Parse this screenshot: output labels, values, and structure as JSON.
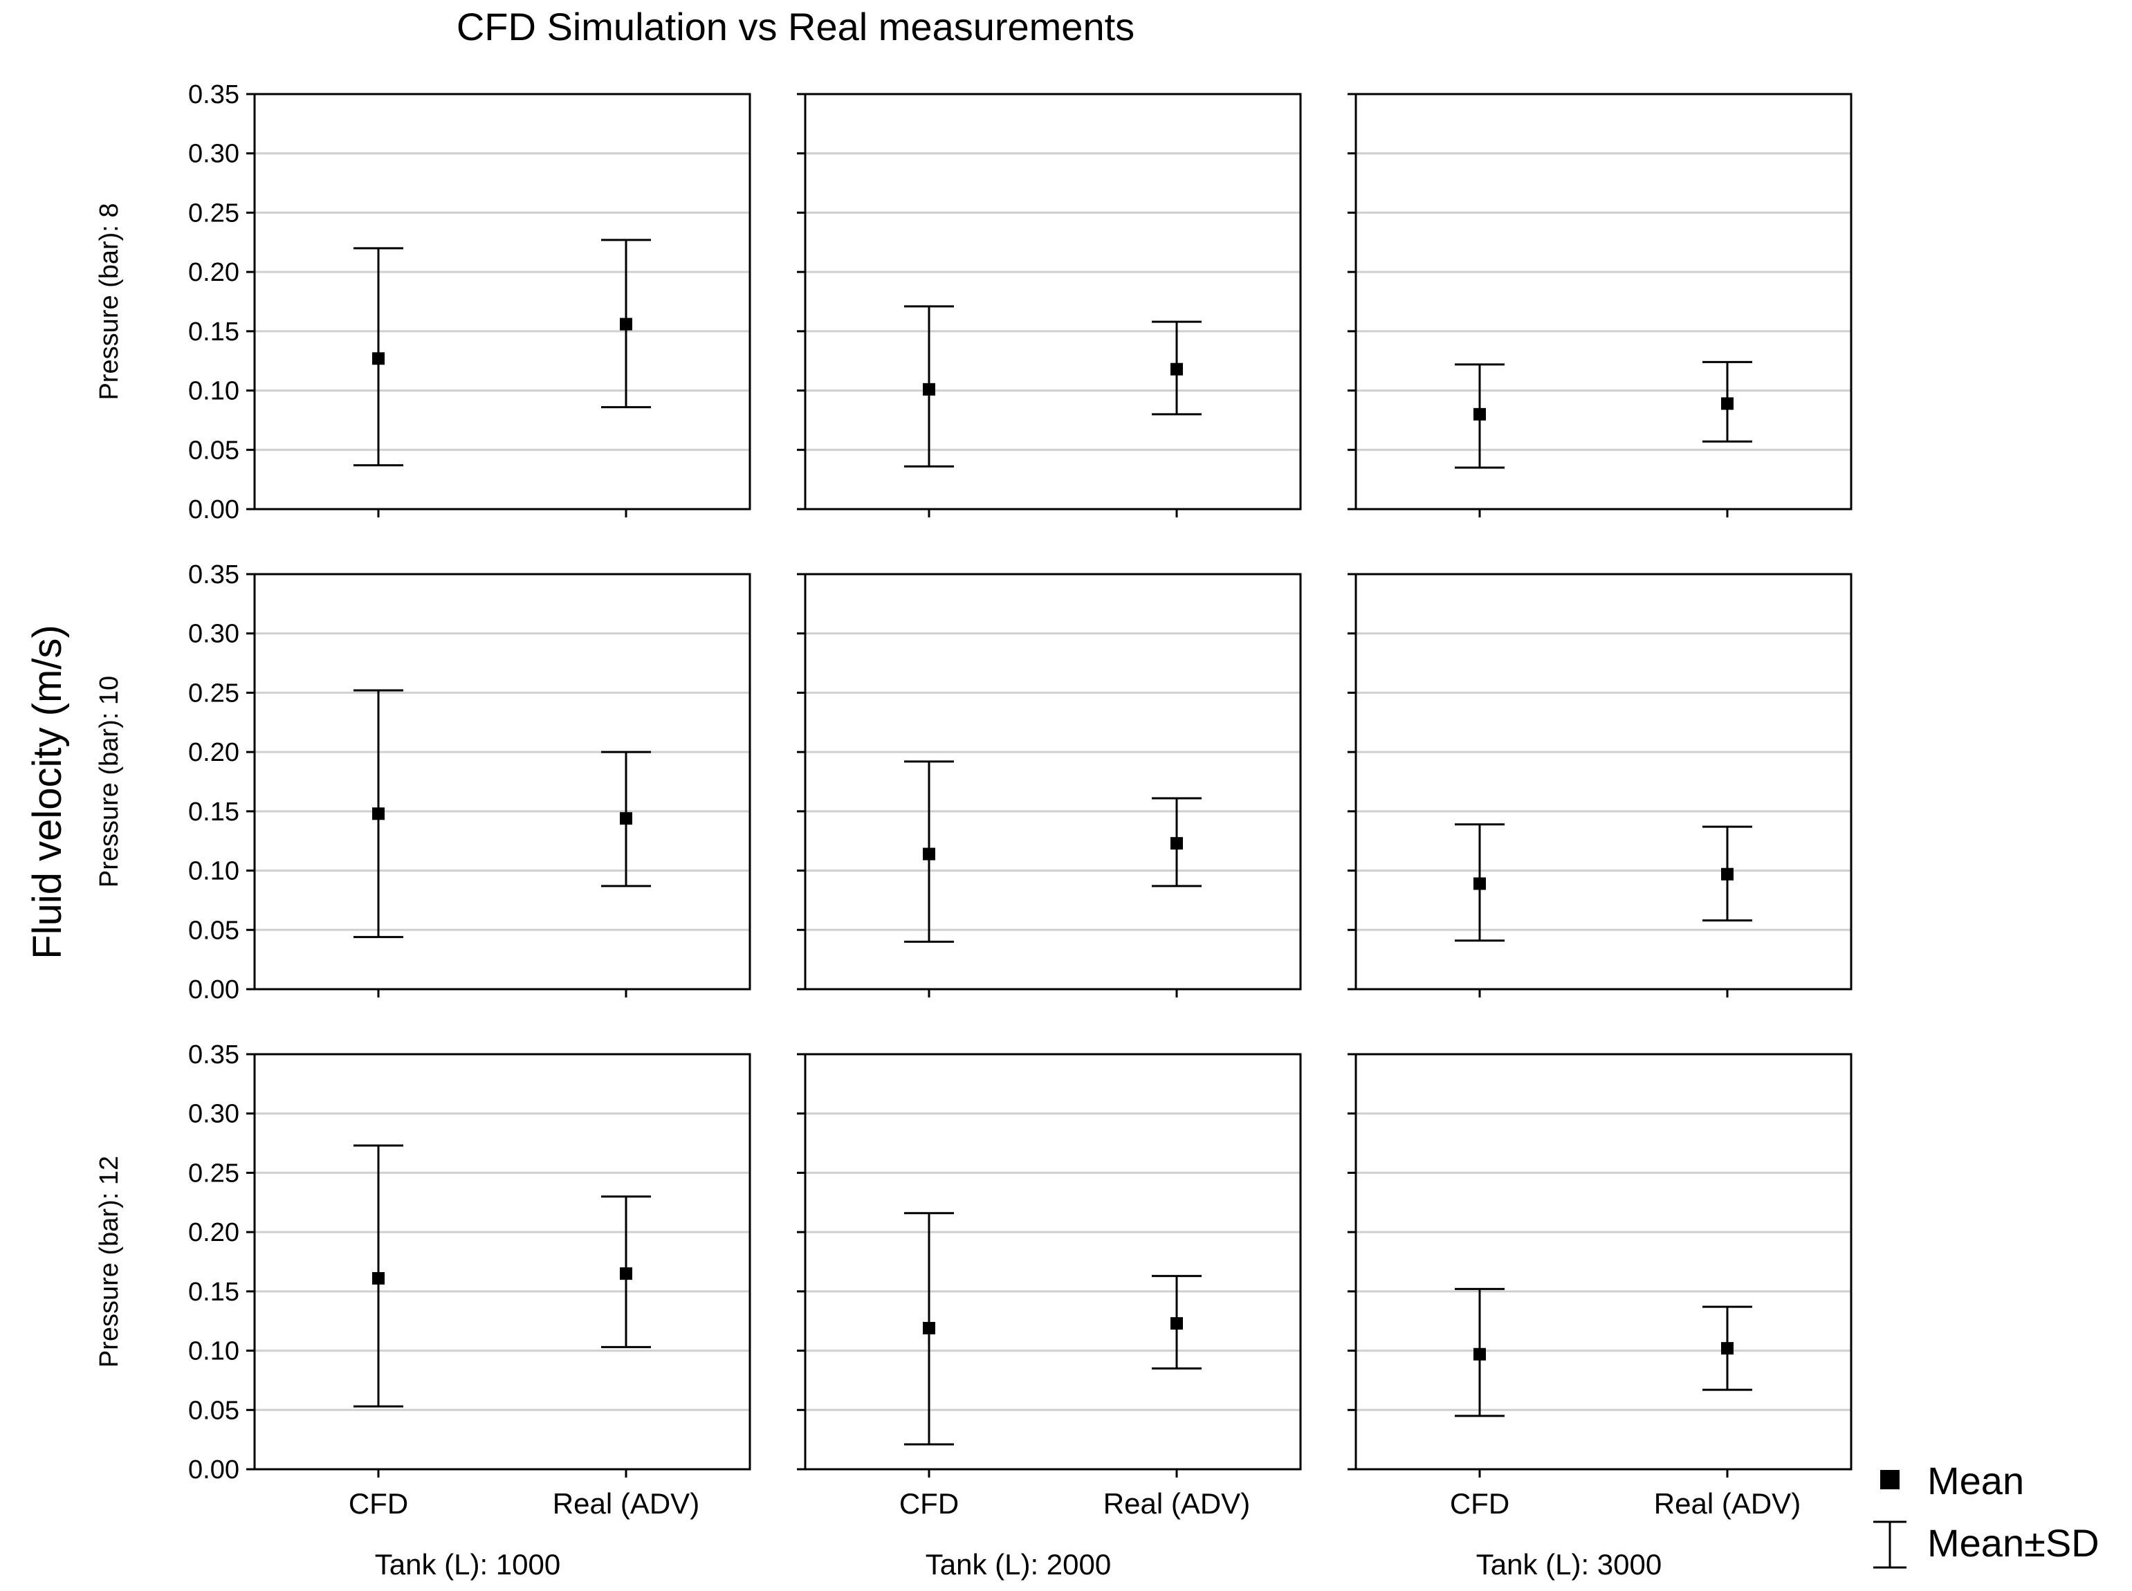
{
  "chart_data": {
    "type": "scatter",
    "title": "CFD Simulation vs Real measurements",
    "ylabel": "Fluid velocity (m/s)",
    "ylim": [
      0,
      0.35
    ],
    "yticks": [
      "0.00",
      "0.05",
      "0.10",
      "0.15",
      "0.20",
      "0.25",
      "0.30",
      "0.35"
    ],
    "categories": [
      "CFD",
      "Real (ADV)"
    ],
    "rows": [
      {
        "label": "Pressure (bar): 8"
      },
      {
        "label": "Pressure (bar): 10"
      },
      {
        "label": "Pressure (bar): 12"
      }
    ],
    "columns": [
      {
        "label": "Tank (L): 1000"
      },
      {
        "label": "Tank (L): 2000"
      },
      {
        "label": "Tank (L): 3000"
      }
    ],
    "panels": [
      {
        "row": 0,
        "col": 0,
        "points": [
          {
            "category": "CFD",
            "mean": 0.127,
            "low": 0.037,
            "high": 0.22
          },
          {
            "category": "Real (ADV)",
            "mean": 0.156,
            "low": 0.086,
            "high": 0.227
          }
        ]
      },
      {
        "row": 0,
        "col": 1,
        "points": [
          {
            "category": "CFD",
            "mean": 0.101,
            "low": 0.036,
            "high": 0.171
          },
          {
            "category": "Real (ADV)",
            "mean": 0.118,
            "low": 0.08,
            "high": 0.158
          }
        ]
      },
      {
        "row": 0,
        "col": 2,
        "points": [
          {
            "category": "CFD",
            "mean": 0.08,
            "low": 0.035,
            "high": 0.122
          },
          {
            "category": "Real (ADV)",
            "mean": 0.089,
            "low": 0.057,
            "high": 0.124
          }
        ]
      },
      {
        "row": 1,
        "col": 0,
        "points": [
          {
            "category": "CFD",
            "mean": 0.148,
            "low": 0.044,
            "high": 0.252
          },
          {
            "category": "Real (ADV)",
            "mean": 0.144,
            "low": 0.087,
            "high": 0.2
          }
        ]
      },
      {
        "row": 1,
        "col": 1,
        "points": [
          {
            "category": "CFD",
            "mean": 0.114,
            "low": 0.04,
            "high": 0.192
          },
          {
            "category": "Real (ADV)",
            "mean": 0.123,
            "low": 0.087,
            "high": 0.161
          }
        ]
      },
      {
        "row": 1,
        "col": 2,
        "points": [
          {
            "category": "CFD",
            "mean": 0.089,
            "low": 0.041,
            "high": 0.139
          },
          {
            "category": "Real (ADV)",
            "mean": 0.097,
            "low": 0.058,
            "high": 0.137
          }
        ]
      },
      {
        "row": 2,
        "col": 0,
        "points": [
          {
            "category": "CFD",
            "mean": 0.161,
            "low": 0.053,
            "high": 0.273
          },
          {
            "category": "Real (ADV)",
            "mean": 0.165,
            "low": 0.103,
            "high": 0.23
          }
        ]
      },
      {
        "row": 2,
        "col": 1,
        "points": [
          {
            "category": "CFD",
            "mean": 0.119,
            "low": 0.021,
            "high": 0.216
          },
          {
            "category": "Real (ADV)",
            "mean": 0.123,
            "low": 0.085,
            "high": 0.163
          }
        ]
      },
      {
        "row": 2,
        "col": 2,
        "points": [
          {
            "category": "CFD",
            "mean": 0.097,
            "low": 0.045,
            "high": 0.152
          },
          {
            "category": "Real (ADV)",
            "mean": 0.102,
            "low": 0.067,
            "high": 0.137
          }
        ]
      }
    ],
    "legend": {
      "mean": "Mean",
      "range": "Mean±SD"
    },
    "grid": true
  }
}
